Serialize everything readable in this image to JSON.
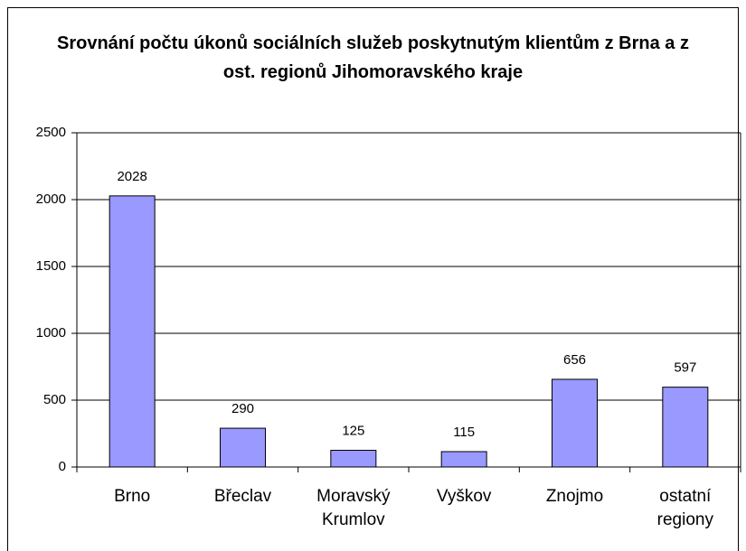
{
  "chart_data": {
    "type": "bar",
    "title": "Srovnání počtu úkonů sociálních služeb poskytnutým klientům z Brna a z ost. regionů Jihomoravského kraje",
    "categories": [
      "Brno",
      "Břeclav",
      "Moravský Krumlov",
      "Vyškov",
      "Znojmo",
      "ostatní regiony"
    ],
    "values": [
      2028,
      290,
      125,
      115,
      656,
      597
    ],
    "color": "#9999ff",
    "ylim": [
      0,
      2500
    ],
    "yticks": [
      0,
      500,
      1000,
      1500,
      2000,
      2500
    ],
    "grid": true
  }
}
